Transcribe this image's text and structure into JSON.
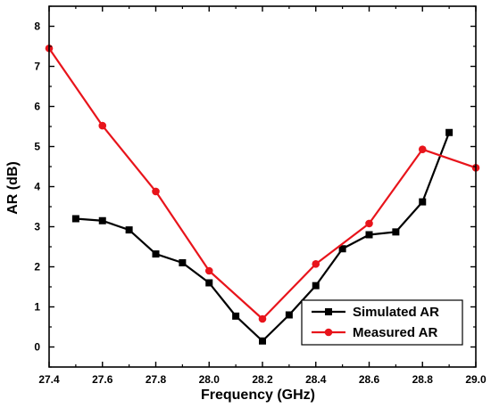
{
  "chart_data": {
    "type": "line",
    "xlabel": "Frequency (GHz)",
    "ylabel": "AR (dB)",
    "xlim": [
      27.4,
      29.0
    ],
    "ylim": [
      -0.5,
      8.5
    ],
    "xticks": [
      27.4,
      27.6,
      27.8,
      28.0,
      28.2,
      28.4,
      28.6,
      28.8,
      29.0
    ],
    "xtick_labels": [
      "27.4",
      "27.6",
      "27.8",
      "28.0",
      "28.2",
      "28.4",
      "28.6",
      "28.8",
      "29.0"
    ],
    "yticks": [
      0,
      1,
      2,
      3,
      4,
      5,
      6,
      7,
      8
    ],
    "ytick_labels": [
      "0",
      "1",
      "2",
      "3",
      "4",
      "5",
      "6",
      "7",
      "8"
    ],
    "grid": false,
    "legend_position": "bottom-right",
    "series": [
      {
        "name": "Simulated AR",
        "color": "#000000",
        "marker": "square",
        "x": [
          27.5,
          27.6,
          27.7,
          27.8,
          27.9,
          28.0,
          28.1,
          28.2,
          28.3,
          28.4,
          28.5,
          28.6,
          28.7,
          28.8,
          28.9
        ],
        "y": [
          3.2,
          3.15,
          2.92,
          2.32,
          2.1,
          1.6,
          0.77,
          0.15,
          0.8,
          1.53,
          2.45,
          2.8,
          2.87,
          3.62,
          5.35
        ]
      },
      {
        "name": "Measured AR",
        "color": "#e8141b",
        "marker": "circle",
        "x": [
          27.4,
          27.6,
          27.8,
          28.0,
          28.2,
          28.4,
          28.6,
          28.8,
          29.0
        ],
        "y": [
          7.45,
          5.52,
          3.88,
          1.9,
          0.7,
          2.07,
          3.08,
          4.93,
          4.47
        ]
      }
    ]
  }
}
